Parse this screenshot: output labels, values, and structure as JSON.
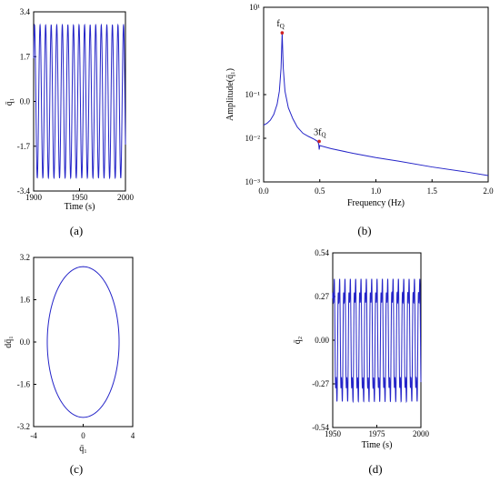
{
  "chart_data": [
    {
      "id": "a",
      "type": "line",
      "panel_label": "(a)",
      "xlabel": "Time (s)",
      "ylabel": "q̄₁",
      "xlim": [
        1900,
        2000
      ],
      "ylim": [
        -3.4,
        3.4
      ],
      "xticks": [
        1900,
        1950,
        2000
      ],
      "yticks": [
        "3.4",
        "1.7",
        "0.0",
        "-1.7",
        "-3.4"
      ],
      "series": [
        {
          "amplitude": 2.9,
          "cycles_in_range": 16.5,
          "color": "#2424c8"
        }
      ]
    },
    {
      "id": "b",
      "type": "line",
      "panel_label": "(b)",
      "xlabel": "Frequency (Hz)",
      "ylabel": "Amplitude(q̄₁)",
      "yscale": "log",
      "xlim": [
        0.0,
        2.0
      ],
      "ylim": [
        0.001,
        10
      ],
      "xticks": [
        "0.0",
        "0.5",
        "1.0",
        "1.5",
        "2.0"
      ],
      "yticks": [
        "10¹",
        "10⁻¹",
        "10⁻²",
        "10⁻³"
      ],
      "annotations": [
        {
          "text": "f",
          "sub": "Q",
          "x": 0.165,
          "y": 2.6
        },
        {
          "text": "3f",
          "sub": "Q",
          "x": 0.495,
          "y": 0.0085
        }
      ],
      "series": [
        {
          "color": "#2424c8",
          "points": [
            [
              0.0,
              0.02
            ],
            [
              0.03,
              0.022
            ],
            [
              0.06,
              0.026
            ],
            [
              0.09,
              0.035
            ],
            [
              0.12,
              0.06
            ],
            [
              0.14,
              0.12
            ],
            [
              0.155,
              0.4
            ],
            [
              0.165,
              2.6
            ],
            [
              0.175,
              0.4
            ],
            [
              0.19,
              0.12
            ],
            [
              0.22,
              0.05
            ],
            [
              0.26,
              0.028
            ],
            [
              0.3,
              0.018
            ],
            [
              0.35,
              0.013
            ],
            [
              0.4,
              0.011
            ],
            [
              0.45,
              0.0095
            ],
            [
              0.48,
              0.0085
            ],
            [
              0.49,
              0.0075
            ],
            [
              0.495,
              0.0055
            ],
            [
              0.5,
              0.0068
            ],
            [
              0.6,
              0.0058
            ],
            [
              0.8,
              0.0045
            ],
            [
              1.0,
              0.0036
            ],
            [
              1.2,
              0.003
            ],
            [
              1.5,
              0.0022
            ],
            [
              1.8,
              0.0017
            ],
            [
              2.0,
              0.0014
            ]
          ]
        }
      ]
    },
    {
      "id": "c",
      "type": "line",
      "panel_label": "(c)",
      "xlabel": "q̄₁",
      "ylabel": "dq̄₁",
      "xlim": [
        -4,
        4
      ],
      "ylim": [
        -3.2,
        3.2
      ],
      "xticks": [
        "-4",
        "0",
        "4"
      ],
      "yticks": [
        "3.2",
        "1.6",
        "0.0",
        "-1.6",
        "-3.2"
      ],
      "series": [
        {
          "shape": "ellipse",
          "rx": 2.9,
          "ry": 2.85,
          "color": "#2424c8"
        }
      ]
    },
    {
      "id": "d",
      "type": "line",
      "panel_label": "(d)",
      "xlabel": "Time (s)",
      "ylabel": "q̄₂",
      "xlim": [
        1950,
        2000
      ],
      "ylim": [
        -0.54,
        0.54
      ],
      "xticks": [
        "1950",
        "1975",
        "2000"
      ],
      "yticks": [
        "0.54",
        "0.27",
        "0.00",
        "-0.27",
        "-0.54"
      ],
      "series": [
        {
          "main_amplitude": 0.36,
          "harmonic_amplitude": 0.12,
          "cycles_in_range": 16.5,
          "color": "#2424c8"
        }
      ]
    }
  ]
}
